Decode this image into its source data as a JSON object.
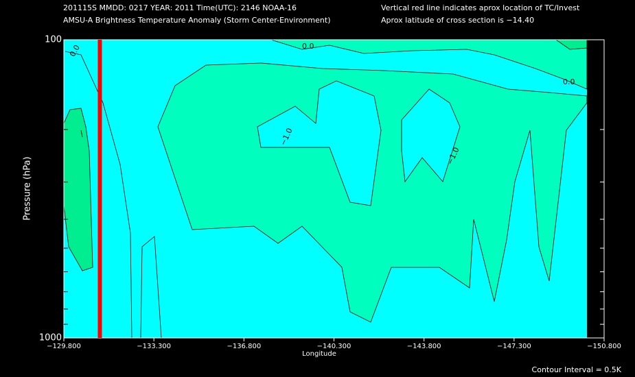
{
  "chart_data": {
    "type": "contour",
    "header": [
      "201115S  MMDD: 0217 YEAR: 2011 Time(UTC): 2146 NOAA-16",
      "AMSU-A Brightness Temperature Anomaly (Storm Center-Environment)"
    ],
    "notes": [
      "Vertical red line indicates aprox location of TC/Invest",
      "Aprox latitude of cross section is −14.40"
    ],
    "xlabel": "Longitude",
    "ylabel": "Pressure (hPa)",
    "footer": "Contour Interval = 0.5K",
    "xlim": [
      -129.8,
      -150.8
    ],
    "xticks": [
      {
        "value": -129.8,
        "label": "−129.800"
      },
      {
        "value": -133.3,
        "label": "−133.300"
      },
      {
        "value": -136.8,
        "label": "−136.800"
      },
      {
        "value": -140.3,
        "label": "−140.300"
      },
      {
        "value": -143.8,
        "label": "−143.800"
      },
      {
        "value": -147.3,
        "label": "−147.300"
      },
      {
        "value": -150.8,
        "label": "−150.800"
      }
    ],
    "ylim": [
      1000,
      100
    ],
    "log_y": true,
    "yticks": [
      100,
      1000
    ],
    "yminorticks": [
      200,
      300,
      400,
      500,
      600,
      700,
      800,
      900
    ],
    "tc_longitude": -131.2,
    "tc_color": "#ff0000",
    "contour_labels": [
      "0.0",
      "0.0",
      "0.0",
      "−1.0",
      "−1.0"
    ]
  }
}
